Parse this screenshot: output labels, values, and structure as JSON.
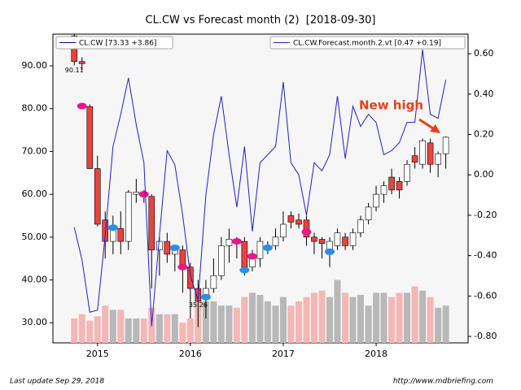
{
  "chart_data": {
    "type": "candlestick",
    "title": "CL.CW vs Forecast month (2)  [2018-09-30]",
    "x": [
      2014.75,
      2014.833,
      2014.917,
      2015,
      2015.083,
      2015.167,
      2015.25,
      2015.333,
      2015.417,
      2015.5,
      2015.583,
      2015.667,
      2015.75,
      2015.833,
      2015.917,
      2016,
      2016.083,
      2016.167,
      2016.25,
      2016.333,
      2016.417,
      2016.5,
      2016.583,
      2016.667,
      2016.75,
      2016.833,
      2016.917,
      2017,
      2017.083,
      2017.167,
      2017.25,
      2017.333,
      2017.417,
      2017.5,
      2017.583,
      2017.667,
      2017.75,
      2017.833,
      2017.917,
      2018,
      2018.083,
      2018.167,
      2018.25,
      2018.333,
      2018.417,
      2018.5,
      2018.583,
      2018.667,
      2018.75
    ],
    "series": [
      {
        "name": "CL.CW [73.33 +3.86]",
        "color": "#00008b",
        "up_color": "#ffffff",
        "down_color": "#e8433f",
        "open": [
          97,
          91,
          80.5,
          66,
          54,
          49,
          52,
          49,
          60,
          60.5,
          59.5,
          47,
          49,
          46,
          47,
          43,
          38,
          36,
          38,
          41,
          48,
          49.5,
          49,
          43,
          45,
          47,
          48,
          50,
          55,
          54,
          54,
          50,
          49.5,
          46,
          48,
          50,
          48,
          51,
          54,
          57,
          60,
          64,
          63,
          63,
          69,
          67,
          72,
          67,
          69.47
        ],
        "high": [
          97.5,
          92,
          81,
          69,
          56,
          55,
          56,
          61,
          63.6,
          61,
          60,
          50,
          51,
          48,
          48,
          44,
          40,
          40,
          45,
          50,
          52,
          50,
          50,
          47,
          50,
          49,
          52,
          56,
          56,
          55.5,
          55,
          51,
          50,
          50,
          52,
          51,
          52,
          55,
          58,
          62,
          63,
          66,
          64,
          68,
          71,
          73,
          73,
          70,
          73.5
        ],
        "low": [
          90.11,
          89,
          65.9,
          52.5,
          45,
          46,
          46,
          47,
          58,
          58,
          38,
          41,
          44,
          42,
          37,
          31,
          29,
          31,
          37,
          40,
          44,
          45,
          41,
          42,
          43,
          46,
          47,
          49,
          52,
          52,
          48,
          46,
          45,
          43,
          47,
          47,
          47,
          50,
          53,
          56,
          58,
          60,
          59,
          62,
          66,
          66,
          65,
          64,
          66
        ],
        "close": [
          91,
          90.5,
          66,
          53,
          49,
          52.5,
          49,
          60.5,
          60.5,
          59.5,
          47,
          49,
          46,
          47,
          43,
          38,
          35,
          38,
          41,
          48,
          49.5,
          49,
          43,
          45,
          49,
          48,
          50,
          53,
          53.5,
          53,
          50,
          49,
          48.5,
          49,
          51,
          48,
          51,
          54,
          57,
          60,
          62,
          61,
          61,
          67,
          67.5,
          72.5,
          67,
          69.47,
          73.33
        ]
      },
      {
        "name": "CL.CW.Forecast.month.2.vt [0.47 +0.19]",
        "color": "#1f1fcc",
        "axis": "y2",
        "values": [
          -0.26,
          -0.42,
          -0.68,
          -0.67,
          -0.3,
          0.14,
          0.3,
          0.48,
          0.25,
          0.06,
          -0.75,
          -0.3,
          0.12,
          0.05,
          -0.2,
          -0.5,
          -0.62,
          -0.1,
          0.2,
          0.39,
          0.1,
          -0.16,
          0.14,
          -0.28,
          0.06,
          0.1,
          0.14,
          0.46,
          0.06,
          0,
          -0.2,
          0.06,
          0.02,
          0.1,
          0.39,
          0.08,
          0.34,
          0.24,
          0.3,
          0.26,
          0.1,
          0.12,
          0.16,
          0.26,
          0.26,
          0.62,
          0.3,
          0.28,
          0.47
        ]
      }
    ],
    "volume": {
      "up_color": "#b8b8b8",
      "down_color": "#f4b6b6",
      "values": [
        31,
        32,
        30.5,
        31.5,
        34,
        33,
        33,
        31,
        31,
        31,
        33.5,
        32,
        32,
        32,
        30,
        31,
        35,
        35,
        35,
        34,
        34,
        33.5,
        36,
        37,
        36.5,
        35,
        34,
        36,
        34,
        35,
        36,
        37,
        37.5,
        36,
        40,
        37,
        36,
        36.5,
        34,
        37,
        37,
        36,
        37,
        37,
        38.5,
        37.5,
        36,
        33.5,
        34
      ]
    },
    "markers": [
      {
        "x": 2014.833,
        "y": 80.6,
        "color": "#e8178a"
      },
      {
        "x": 2015.167,
        "y": 52.2,
        "color": "#2b8fe8"
      },
      {
        "x": 2015.5,
        "y": 60,
        "color": "#e8178a"
      },
      {
        "x": 2015.833,
        "y": 47.5,
        "color": "#2b8fe8"
      },
      {
        "x": 2015.917,
        "y": 43,
        "color": "#e8178a"
      },
      {
        "x": 2016.167,
        "y": 36,
        "color": "#2b8fe8"
      },
      {
        "x": 2016.5,
        "y": 49,
        "color": "#e8178a"
      },
      {
        "x": 2016.583,
        "y": 42.3,
        "color": "#2b8fe8"
      },
      {
        "x": 2016.667,
        "y": 45.5,
        "color": "#e8178a"
      },
      {
        "x": 2016.833,
        "y": 47.5,
        "color": "#2b8fe8"
      },
      {
        "x": 2017.25,
        "y": 51.2,
        "color": "#e8178a"
      },
      {
        "x": 2017.5,
        "y": 46.6,
        "color": "#2b8fe8"
      }
    ],
    "annotations": [
      {
        "text": "90.11",
        "x": 2014.75,
        "y": 90.11
      },
      {
        "text": "35.26",
        "x": 2016.083,
        "y": 35.26
      }
    ],
    "callout": "New high",
    "xlim": [
      2014.52,
      2018.99
    ],
    "xticks": [
      2015,
      2016,
      2017,
      2018
    ],
    "ylim": [
      25.3,
      97.4
    ],
    "yticks": [
      {
        "value": 30,
        "label": "30.00"
      },
      {
        "value": 40,
        "label": "40.00"
      },
      {
        "value": 50,
        "label": "50.00"
      },
      {
        "value": 60,
        "label": "60.00"
      },
      {
        "value": 70,
        "label": "70.00"
      },
      {
        "value": 80,
        "label": "80.00"
      },
      {
        "value": 90,
        "label": "90.00"
      }
    ],
    "y2lim": [
      -0.832,
      0.697
    ],
    "y2ticks": [
      {
        "value": -0.8,
        "label": "-0.80"
      },
      {
        "value": -0.6,
        "label": "-0.60"
      },
      {
        "value": -0.4,
        "label": "-0.40"
      },
      {
        "value": -0.2,
        "label": "-0.20"
      },
      {
        "value": 0,
        "label": "0.00"
      },
      {
        "value": 0.2,
        "label": "0.20"
      },
      {
        "value": 0.4,
        "label": "0.40"
      },
      {
        "value": 0.6,
        "label": "0.60"
      }
    ],
    "footer_left": "Last update Sep 29, 2018",
    "footer_right": "http://www.mdbriefing.com"
  }
}
